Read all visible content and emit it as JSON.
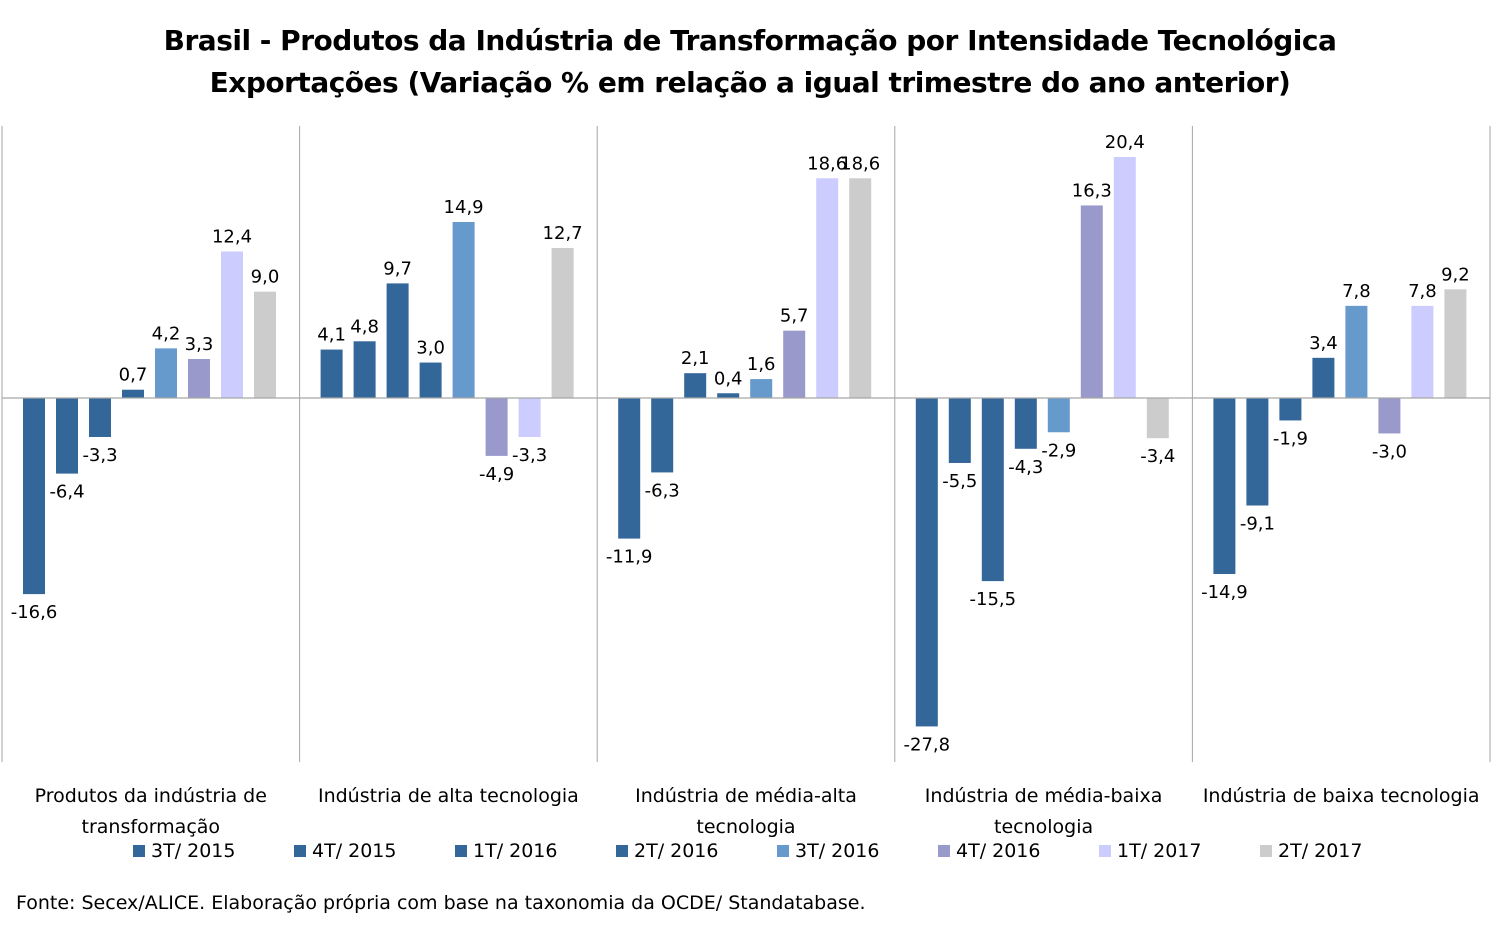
{
  "chart_data": {
    "type": "bar",
    "title": "Brasil - Produtos da Indústria de Transformação por Intensidade Tecnológica",
    "subtitle": "Exportações (Variação % em relação a igual trimestre do ano anterior)",
    "categories": [
      [
        "Produtos da indústria de",
        "transformação"
      ],
      [
        "Indústria de alta tecnologia"
      ],
      [
        "Indústria de média-alta",
        "tecnologia"
      ],
      [
        "Indústria de média-baixa",
        "tecnologia"
      ],
      [
        "Indústria de baixa tecnologia"
      ]
    ],
    "series": [
      {
        "name": "3T/ 2015",
        "color": "#336699",
        "values": [
          -16.6,
          4.1,
          -11.9,
          -27.8,
          -14.9
        ],
        "labels": [
          "-16,6",
          "4,1",
          "-11,9",
          "-27,8",
          "-14,9"
        ]
      },
      {
        "name": "4T/ 2015",
        "color": "#336699",
        "values": [
          -6.4,
          4.8,
          -6.3,
          -5.5,
          -9.1
        ],
        "labels": [
          "-6,4",
          "4,8",
          "-6,3",
          "-5,5",
          "-9,1"
        ]
      },
      {
        "name": "1T/ 2016",
        "color": "#336699",
        "values": [
          -3.3,
          9.7,
          2.1,
          -15.5,
          -1.9
        ],
        "labels": [
          "-3,3",
          "9,7",
          "2,1",
          "-15,5",
          "-1,9"
        ]
      },
      {
        "name": "2T/ 2016",
        "color": "#336699",
        "values": [
          0.7,
          3.0,
          0.4,
          -4.3,
          3.4
        ],
        "labels": [
          "0,7",
          "3,0",
          "0,4",
          "-4,3",
          "3,4"
        ]
      },
      {
        "name": "3T/ 2016",
        "color": "#6699cc",
        "values": [
          4.2,
          14.9,
          1.6,
          -2.9,
          7.8
        ],
        "labels": [
          "4,2",
          "14,9",
          "1,6",
          "-2,9",
          "7,8"
        ]
      },
      {
        "name": "4T/ 2016",
        "color": "#9999cc",
        "values": [
          3.3,
          -4.9,
          5.7,
          16.3,
          -3.0
        ],
        "labels": [
          "3,3",
          "-4,9",
          "5,7",
          "16,3",
          "-3,0"
        ]
      },
      {
        "name": "1T/ 2017",
        "color": "#ccccff",
        "values": [
          12.4,
          -3.3,
          18.6,
          20.4,
          7.8
        ],
        "labels": [
          "12,4",
          "-3,3",
          "18,6",
          "20,4",
          "7,8"
        ]
      },
      {
        "name": "2T/ 2017",
        "color": "#cccccc",
        "values": [
          9.0,
          12.7,
          18.6,
          -3.4,
          9.2
        ],
        "labels": [
          "9,0",
          "12,7",
          "18,6",
          "-3,4",
          "9,2"
        ]
      }
    ],
    "ylim": [
      -31,
      23
    ],
    "grid": false,
    "legend_position": "bottom",
    "source": "Fonte: Secex/ALICE. Elaboração própria com base na taxonomia da OCDE/ Standatabase."
  }
}
